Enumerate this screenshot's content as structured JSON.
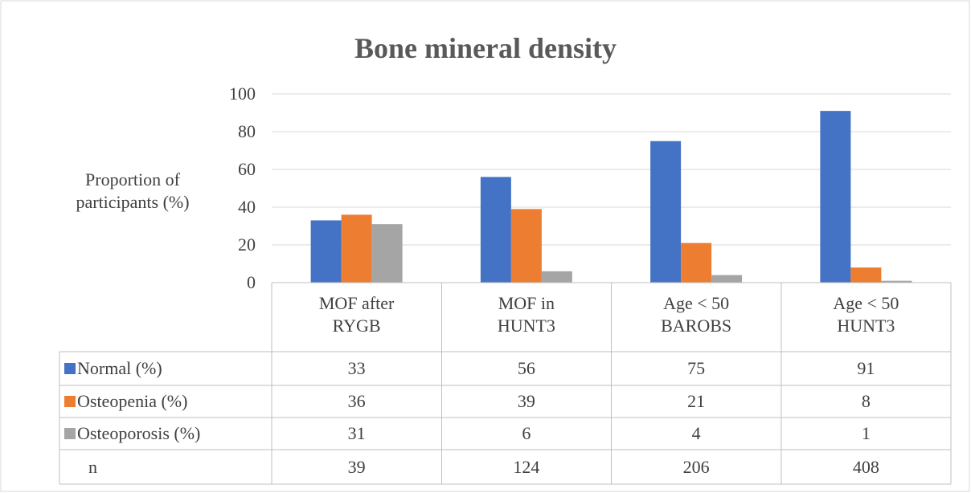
{
  "chart_data": {
    "type": "bar",
    "title": "Bone mineral density",
    "y_label": "Proportion of\nparticipants (%)",
    "categories": [
      "MOF after\nRYGB",
      "MOF in\nHUNT3",
      "Age < 50\nBAROBS",
      "Age < 50\nHUNT3"
    ],
    "series": [
      {
        "name": "Normal (%)",
        "color": "#4472c4",
        "values": [
          33,
          56,
          75,
          91
        ]
      },
      {
        "name": "Osteopenia (%)",
        "color": "#ed7d31",
        "values": [
          36,
          39,
          21,
          8
        ]
      },
      {
        "name": "Osteoporosis (%)",
        "color": "#a5a5a5",
        "values": [
          31,
          6,
          4,
          1
        ]
      }
    ],
    "table_rows": [
      {
        "name": "n",
        "values": [
          39,
          124,
          206,
          408
        ]
      }
    ],
    "ylim": [
      0,
      100
    ],
    "yticks": [
      0,
      20,
      40,
      60,
      80,
      100
    ],
    "grid": true
  }
}
